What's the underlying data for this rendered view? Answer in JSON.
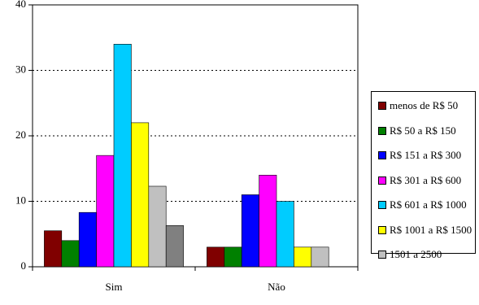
{
  "chart_data": {
    "type": "bar",
    "categories": [
      "Sim",
      "Não"
    ],
    "series": [
      {
        "name": "menos de R$ 50",
        "color": "#800000",
        "values": [
          5.5,
          3
        ]
      },
      {
        "name": "R$ 50 a R$ 150",
        "color": "#008000",
        "values": [
          4,
          3
        ]
      },
      {
        "name": "R$ 151 a R$ 300",
        "color": "#0000ff",
        "values": [
          8.3,
          11
        ]
      },
      {
        "name": "R$ 301 a R$ 600",
        "color": "#ff00ff",
        "values": [
          17,
          14
        ]
      },
      {
        "name": "R$ 601 a R$ 1000",
        "color": "#00ccff",
        "values": [
          34,
          10
        ]
      },
      {
        "name": "R$ 1001 a R$ 1500",
        "color": "#ffff00",
        "values": [
          22,
          3
        ]
      },
      {
        "name": "1501 a 2500",
        "color": "#c0c0c0",
        "values": [
          12.3,
          3
        ]
      },
      {
        "color": "#808080",
        "values": [
          6.3,
          null
        ]
      }
    ],
    "ylim": [
      0,
      40
    ],
    "yticks": [
      0,
      10,
      20,
      30,
      40
    ],
    "grid": true
  }
}
